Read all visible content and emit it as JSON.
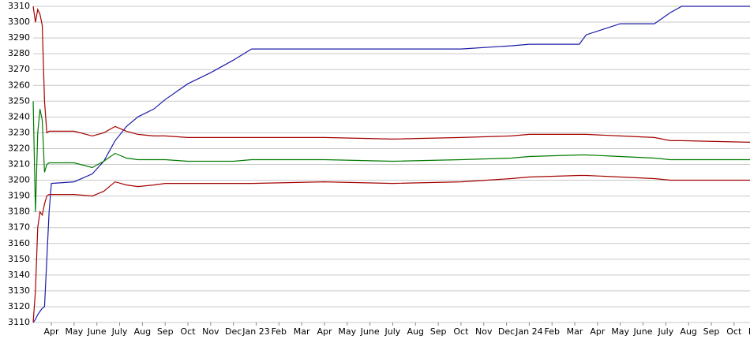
{
  "chart_data": {
    "type": "line",
    "x": [
      -0.8,
      -0.7,
      -0.6,
      -0.5,
      -0.4,
      -0.3,
      -0.2,
      -0.1,
      0,
      1,
      1.8,
      2.3,
      2.8,
      3.3,
      3.8,
      4.5,
      5,
      6,
      7,
      8,
      8.8,
      12,
      15,
      18,
      20.2,
      21,
      23.2,
      23.5,
      25,
      26.5,
      27.2,
      27.7,
      30.7
    ],
    "series": [
      {
        "color": "#1c1ca8",
        "values": [
          3110,
          3112,
          3115,
          3117,
          3119,
          3120,
          3150,
          3180,
          3198,
          3199,
          3204,
          3212,
          3225,
          3234,
          3240,
          3245,
          3251,
          3261,
          3268,
          3276,
          3283,
          3283,
          3283,
          3283,
          3285,
          3286,
          3286,
          3292,
          3299,
          3299,
          3306,
          3310,
          3310
        ]
      },
      {
        "color": "#a40000",
        "values": [
          3310,
          3300,
          3308,
          3305,
          3298,
          3250,
          3230,
          3231,
          3231,
          3231,
          3228,
          3230,
          3234,
          3231,
          3229,
          3228,
          3228,
          3227,
          3227,
          3227,
          3227,
          3227,
          3226,
          3227,
          3228,
          3229,
          3229,
          3229,
          3228,
          3227,
          3225,
          3225,
          3224
        ]
      },
      {
        "color": "#007a00",
        "values": [
          3250,
          3180,
          3230,
          3245,
          3238,
          3205,
          3210,
          3211,
          3211,
          3211,
          3208,
          3212,
          3217,
          3214,
          3213,
          3213,
          3213,
          3212,
          3212,
          3212,
          3213,
          3213,
          3212,
          3213,
          3214,
          3215,
          3216,
          3216,
          3215,
          3214,
          3213,
          3213,
          3213
        ]
      },
      {
        "color": "#a40000",
        "values": [
          3110,
          3130,
          3170,
          3180,
          3178,
          3185,
          3190,
          3191,
          3191,
          3191,
          3190,
          3193,
          3199,
          3197,
          3196,
          3197,
          3198,
          3198,
          3198,
          3198,
          3198,
          3199,
          3198,
          3199,
          3201,
          3202,
          3203,
          3203,
          3202,
          3201,
          3200,
          3200,
          3200
        ]
      }
    ],
    "xlim": [
      -0.8,
      30.7
    ],
    "xticks": [
      {
        "value": 0,
        "label": "Apr"
      },
      {
        "value": 1,
        "label": "May"
      },
      {
        "value": 2,
        "label": "June"
      },
      {
        "value": 3,
        "label": "July"
      },
      {
        "value": 4,
        "label": "Aug"
      },
      {
        "value": 5,
        "label": "Sep"
      },
      {
        "value": 6,
        "label": "Oct"
      },
      {
        "value": 7,
        "label": "Nov"
      },
      {
        "value": 8,
        "label": "Dec"
      },
      {
        "value": 9,
        "label": "Jan 23"
      },
      {
        "value": 10,
        "label": "Feb"
      },
      {
        "value": 11,
        "label": "Mar"
      },
      {
        "value": 12,
        "label": "Apr"
      },
      {
        "value": 13,
        "label": "May"
      },
      {
        "value": 14,
        "label": "June"
      },
      {
        "value": 15,
        "label": "July"
      },
      {
        "value": 16,
        "label": "Aug"
      },
      {
        "value": 17,
        "label": "Sep"
      },
      {
        "value": 18,
        "label": "Oct"
      },
      {
        "value": 19,
        "label": "Nov"
      },
      {
        "value": 20,
        "label": "Dec"
      },
      {
        "value": 21,
        "label": "Jan 24"
      },
      {
        "value": 22,
        "label": "Feb"
      },
      {
        "value": 23,
        "label": "Mar"
      },
      {
        "value": 24,
        "label": "Apr"
      },
      {
        "value": 25,
        "label": "May"
      },
      {
        "value": 26,
        "label": "June"
      },
      {
        "value": 27,
        "label": "July"
      },
      {
        "value": 28,
        "label": "Aug"
      },
      {
        "value": 29,
        "label": "Sep"
      },
      {
        "value": 30,
        "label": "Oct"
      },
      {
        "value": 31,
        "label": "Nov"
      }
    ],
    "ylim": [
      3110,
      3310
    ],
    "yticks": [
      3110,
      3120,
      3130,
      3140,
      3150,
      3160,
      3170,
      3180,
      3190,
      3200,
      3210,
      3220,
      3230,
      3240,
      3250,
      3260,
      3270,
      3280,
      3290,
      3300,
      3310
    ],
    "grid": true
  }
}
